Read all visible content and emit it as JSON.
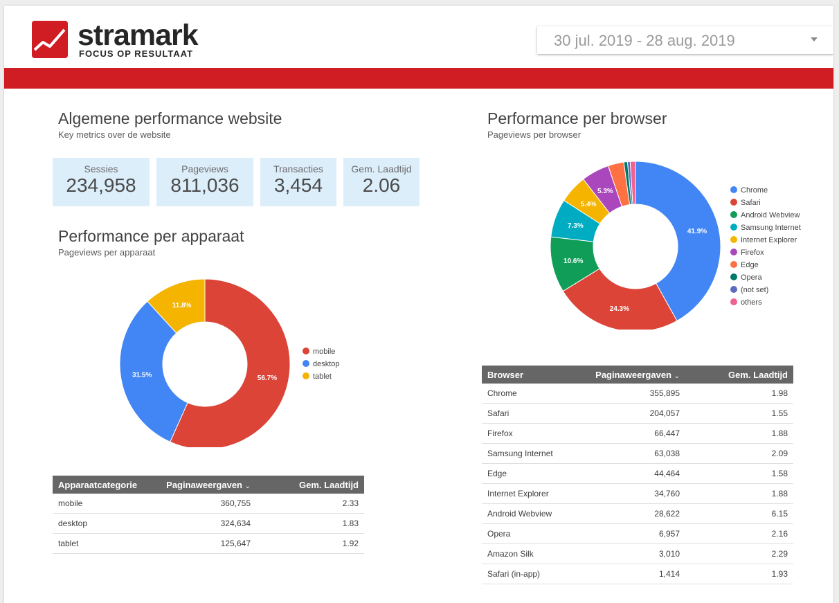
{
  "brand": {
    "name": "stramark",
    "tagline": "FOCUS OP RESULTAAT",
    "colors": {
      "red": "#d01c23",
      "dark": "#262626",
      "kpi_bg": "#ddeefb",
      "table_header": "#666666"
    }
  },
  "date_range": {
    "value": "30 jul. 2019 - 28 aug. 2019",
    "icon": "dropdown-arrow-icon"
  },
  "overview": {
    "title": "Algemene performance website",
    "subtitle": "Key metrics over de website",
    "kpis": [
      {
        "label": "Sessies",
        "value": "234,958"
      },
      {
        "label": "Pageviews",
        "value": "811,036"
      },
      {
        "label": "Transacties",
        "value": "3,454"
      },
      {
        "label": "Gem. Laadtijd",
        "value": "2.06"
      }
    ]
  },
  "device": {
    "title": "Performance per apparaat",
    "subtitle": "Pageviews per apparaat",
    "table": {
      "headers": [
        "Apparaatcategorie",
        "Paginaweergaven",
        "Gem. Laadtijd"
      ],
      "sort_indicator": "⌄",
      "rows": [
        [
          "mobile",
          "360,755",
          "2.33"
        ],
        [
          "desktop",
          "324,634",
          "1.83"
        ],
        [
          "tablet",
          "125,647",
          "1.92"
        ]
      ]
    }
  },
  "browser": {
    "title": "Performance per browser",
    "subtitle": "Pageviews per browser",
    "table": {
      "headers": [
        "Browser",
        "Paginaweergaven",
        "Gem. Laadtijd"
      ],
      "sort_indicator": "⌄",
      "rows": [
        [
          "Chrome",
          "355,895",
          "1.98"
        ],
        [
          "Safari",
          "204,057",
          "1.55"
        ],
        [
          "Firefox",
          "66,447",
          "1.88"
        ],
        [
          "Samsung Internet",
          "63,038",
          "2.09"
        ],
        [
          "Edge",
          "44,464",
          "1.58"
        ],
        [
          "Internet Explorer",
          "34,760",
          "1.88"
        ],
        [
          "Android Webview",
          "28,622",
          "6.15"
        ],
        [
          "Opera",
          "6,957",
          "2.16"
        ],
        [
          "Amazon Silk",
          "3,010",
          "2.29"
        ],
        [
          "Safari (in-app)",
          "1,414",
          "1.93"
        ]
      ]
    }
  },
  "chart_data": [
    {
      "type": "pie",
      "donut": true,
      "legend_position": "right",
      "slices": [
        {
          "label": "mobile",
          "value": 56.7,
          "value_label": "56.7%",
          "color": "#db4437"
        },
        {
          "label": "desktop",
          "value": 31.5,
          "value_label": "31.5%",
          "color": "#4285f4"
        },
        {
          "label": "tablet",
          "value": 11.8,
          "value_label": "11.8%",
          "color": "#f4b400"
        }
      ]
    },
    {
      "type": "pie",
      "donut": true,
      "legend_position": "right",
      "slices": [
        {
          "label": "Chrome",
          "value": 41.9,
          "value_label": "41.9%",
          "color": "#4285f4"
        },
        {
          "label": "Safari",
          "value": 24.3,
          "value_label": "24.3%",
          "color": "#db4437"
        },
        {
          "label": "Android Webview",
          "value": 10.6,
          "value_label": "10.6%",
          "color": "#0f9d58"
        },
        {
          "label": "Samsung Internet",
          "value": 7.3,
          "value_label": "7.3%",
          "color": "#00acc1"
        },
        {
          "label": "Internet Explorer",
          "value": 5.4,
          "value_label": "5.4%",
          "color": "#f4b400"
        },
        {
          "label": "Firefox",
          "value": 5.3,
          "value_label": "5.3%",
          "color": "#ab47bc"
        },
        {
          "label": "Edge",
          "value": 3.0,
          "value_label": "",
          "color": "#ff7043"
        },
        {
          "label": "Opera",
          "value": 0.7,
          "value_label": "",
          "color": "#00796b"
        },
        {
          "label": "(not set)",
          "value": 0.5,
          "value_label": "",
          "color": "#5c6bc0"
        },
        {
          "label": "others",
          "value": 1.0,
          "value_label": "",
          "color": "#f06292"
        }
      ]
    }
  ]
}
